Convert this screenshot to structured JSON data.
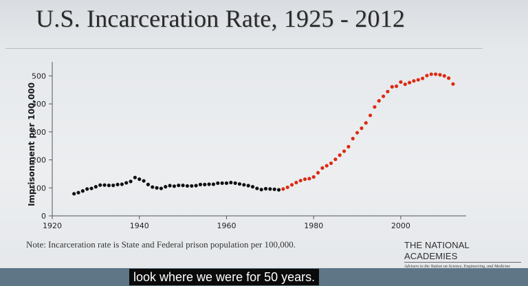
{
  "slide": {
    "title": "U.S. Incarceration Rate, 1925 - 2012",
    "note": "Note: Incarceration rate is State and Federal prison population per 100,000."
  },
  "logo": {
    "name": "THE NATIONAL ACADEMIES",
    "tagline": "Advisers to the Nation on Science, Engineering, and Medicine"
  },
  "caption": {
    "text": "look where we were for 50 years."
  },
  "chart_data": {
    "type": "scatter",
    "title": "",
    "xlabel": "",
    "ylabel": "Imprisonment per 100,000",
    "xlim": [
      1920,
      2015
    ],
    "ylim": [
      0,
      550
    ],
    "xticks": [
      1920,
      1940,
      1960,
      1980,
      2000
    ],
    "yticks": [
      0,
      100,
      200,
      300,
      400,
      500
    ],
    "grid": false,
    "legend": "none",
    "series": [
      {
        "color": "#111111",
        "x": [
          1925,
          1926,
          1927,
          1928,
          1929,
          1930,
          1931,
          1932,
          1933,
          1934,
          1935,
          1936,
          1937,
          1938,
          1939,
          1940,
          1941,
          1942,
          1943,
          1944,
          1945,
          1946,
          1947,
          1948,
          1949,
          1950,
          1951,
          1952,
          1953,
          1954,
          1955,
          1956,
          1957,
          1958,
          1959,
          1960,
          1961,
          1962,
          1963,
          1964,
          1965,
          1966,
          1967,
          1968,
          1969,
          1970,
          1971,
          1972
        ],
        "y": [
          79,
          83,
          89,
          96,
          98,
          104,
          110,
          110,
          109,
          109,
          112,
          113,
          118,
          123,
          137,
          131,
          125,
          112,
          103,
          100,
          98,
          104,
          108,
          106,
          109,
          109,
          107,
          107,
          108,
          112,
          112,
          113,
          113,
          117,
          117,
          117,
          119,
          117,
          114,
          111,
          108,
          104,
          98,
          94,
          97,
          96,
          95,
          93
        ]
      },
      {
        "color": "#dd2a12",
        "x": [
          1973,
          1974,
          1975,
          1976,
          1977,
          1978,
          1979,
          1980,
          1981,
          1982,
          1983,
          1984,
          1985,
          1986,
          1987,
          1988,
          1989,
          1990,
          1991,
          1992,
          1993,
          1994,
          1995,
          1996,
          1997,
          1998,
          1999,
          2000,
          2001,
          2002,
          2003,
          2004,
          2005,
          2006,
          2007,
          2008,
          2009,
          2010,
          2011,
          2012
        ],
        "y": [
          96,
          102,
          111,
          119,
          126,
          131,
          133,
          139,
          154,
          171,
          179,
          188,
          202,
          217,
          231,
          247,
          276,
          297,
          313,
          332,
          359,
          389,
          411,
          427,
          444,
          461,
          463,
          478,
          470,
          476,
          482,
          486,
          491,
          501,
          506,
          506,
          504,
          500,
          492,
          471
        ]
      }
    ]
  }
}
